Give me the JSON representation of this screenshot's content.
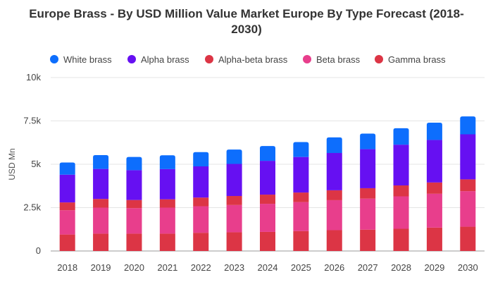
{
  "chart_data": {
    "type": "bar",
    "stacked": true,
    "title": "Europe Brass - By USD Million Value Market Europe By Type Forecast (2018-2030)",
    "xlabel": "",
    "ylabel": "USD Mn",
    "ylim": [
      0,
      10000
    ],
    "yticks": [
      {
        "value": 0,
        "label": "0"
      },
      {
        "value": 2500,
        "label": "2.5k"
      },
      {
        "value": 5000,
        "label": "5k"
      },
      {
        "value": 7500,
        "label": "7.5k"
      },
      {
        "value": 10000,
        "label": "10k"
      }
    ],
    "grid": true,
    "legend_position": "top",
    "categories": [
      "2018",
      "2019",
      "2020",
      "2021",
      "2022",
      "2023",
      "2024",
      "2025",
      "2026",
      "2027",
      "2028",
      "2029",
      "2030"
    ],
    "series": [
      {
        "name": "Gamma brass",
        "color": "#dc3545",
        "values": [
          950,
          1000,
          1000,
          1000,
          1050,
          1080,
          1100,
          1150,
          1200,
          1230,
          1280,
          1350,
          1400
        ]
      },
      {
        "name": "Beta brass",
        "color": "#e83e8c",
        "values": [
          1400,
          1500,
          1470,
          1500,
          1530,
          1570,
          1620,
          1670,
          1730,
          1790,
          1870,
          1950,
          2050
        ]
      },
      {
        "name": "Alpha-beta brass",
        "color": "#dc3545",
        "values": [
          450,
          500,
          470,
          480,
          500,
          520,
          530,
          550,
          570,
          600,
          630,
          650,
          680
        ]
      },
      {
        "name": "Alpha brass",
        "color": "#6610f2",
        "values": [
          1600,
          1730,
          1720,
          1740,
          1800,
          1850,
          1950,
          2050,
          2150,
          2250,
          2350,
          2450,
          2600
        ]
      },
      {
        "name": "White brass",
        "color": "#0d6efd",
        "values": [
          700,
          800,
          760,
          800,
          820,
          830,
          850,
          860,
          900,
          900,
          950,
          1000,
          1030
        ]
      }
    ],
    "legend_order": [
      "White brass",
      "Alpha brass",
      "Alpha-beta brass",
      "Beta brass",
      "Gamma brass"
    ]
  }
}
